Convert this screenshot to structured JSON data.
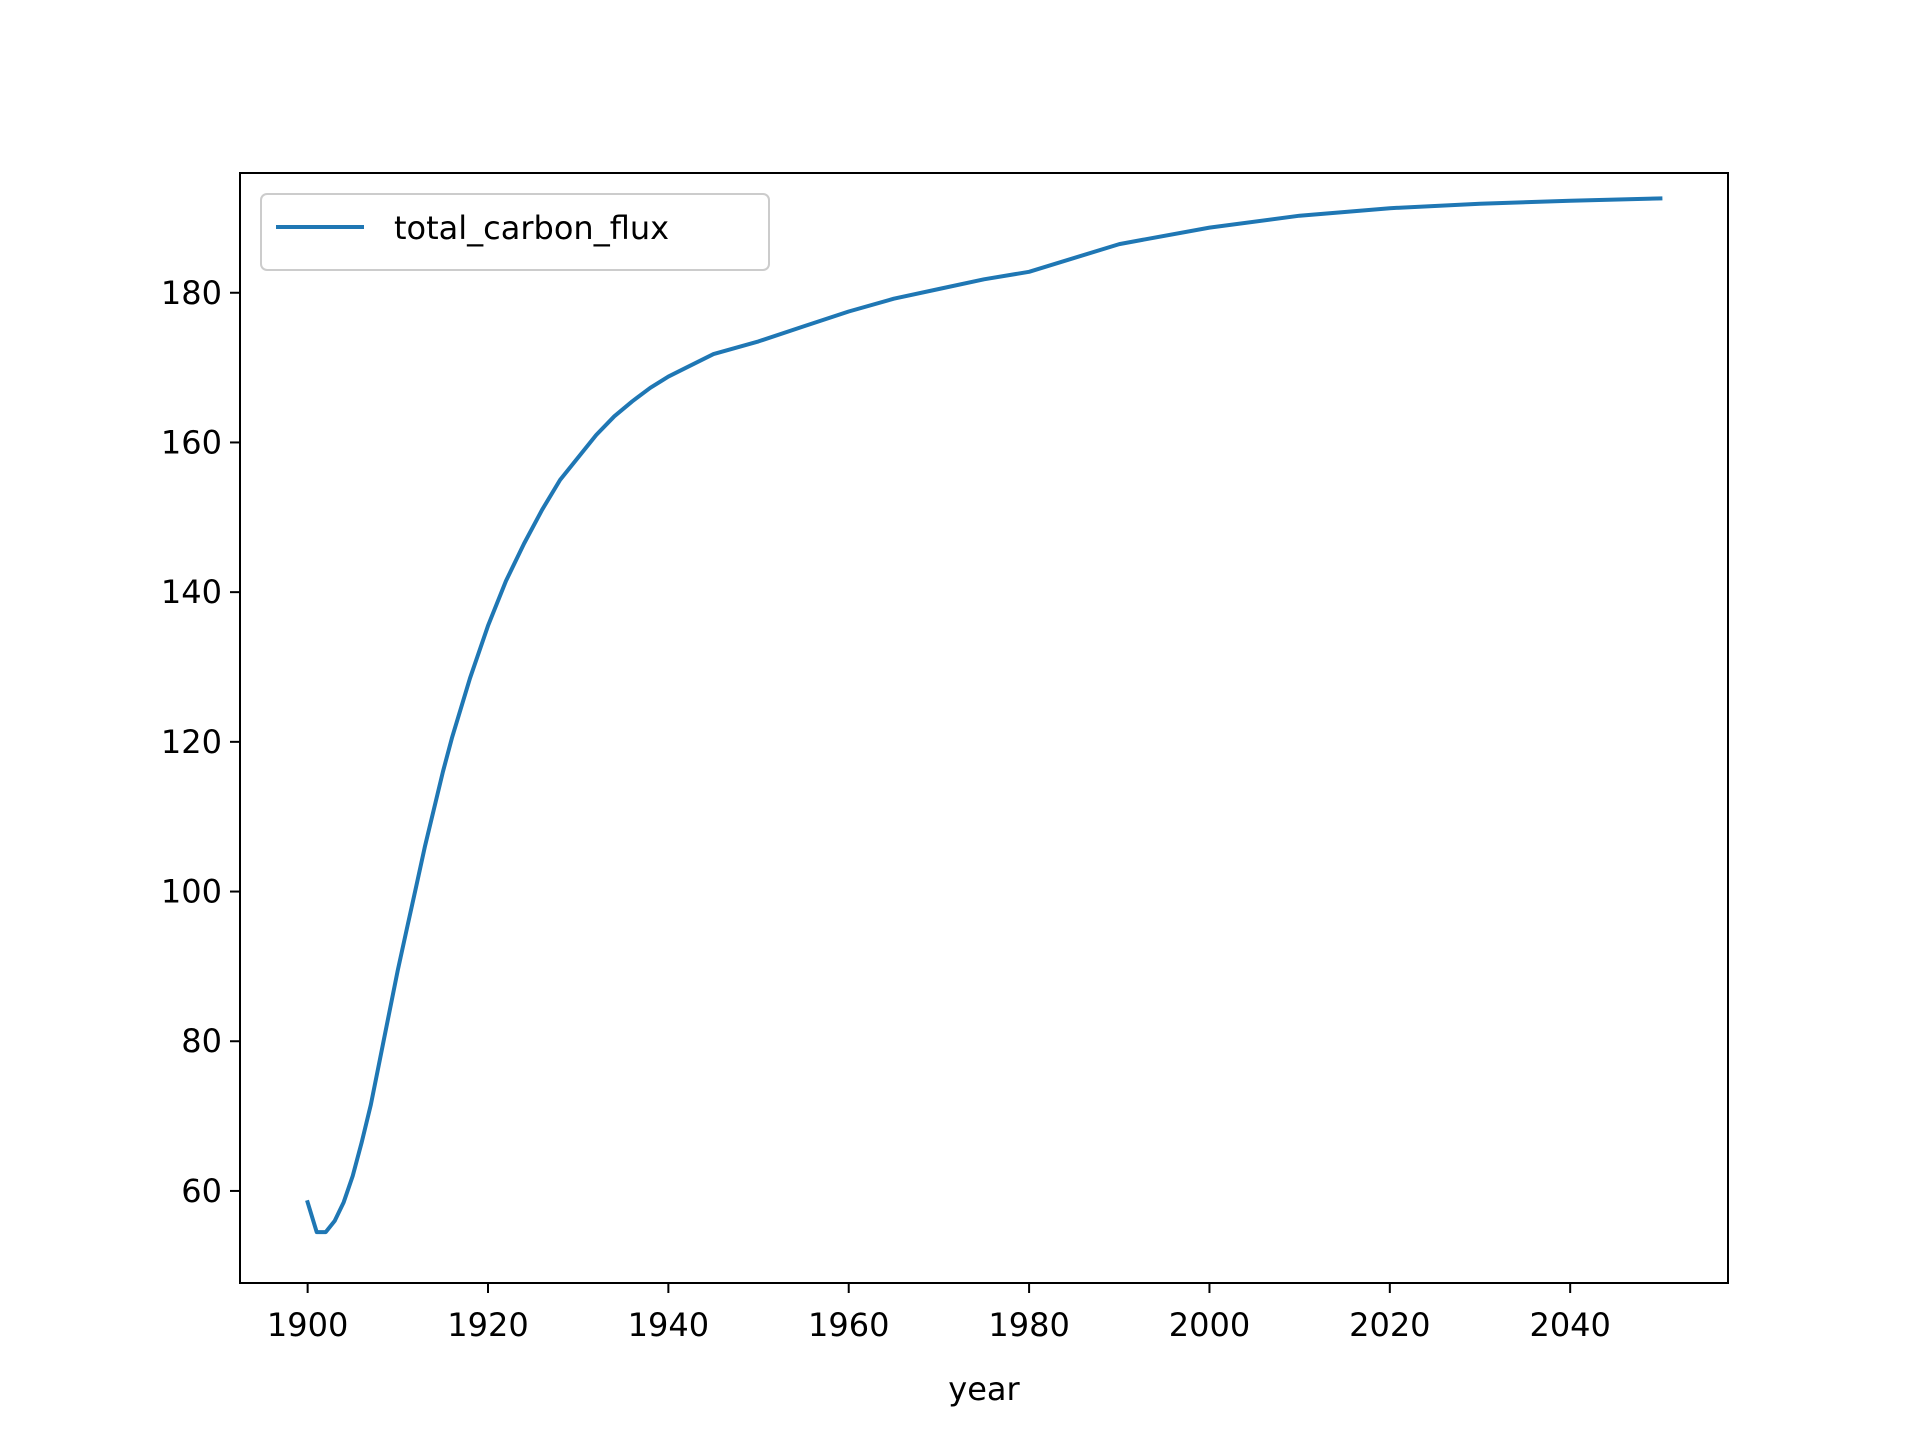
{
  "chart_data": {
    "type": "line",
    "title": "",
    "xlabel": "year",
    "ylabel": "",
    "xlim": [
      1892.5,
      2057.5
    ],
    "ylim": [
      47.7,
      196.0
    ],
    "x_ticks": [
      1900,
      1920,
      1940,
      1960,
      1980,
      2000,
      2020,
      2040
    ],
    "y_ticks": [
      60,
      80,
      100,
      120,
      140,
      160,
      180
    ],
    "grid": false,
    "legend": {
      "placement": "top-left",
      "entries": [
        "total_carbon_flux"
      ]
    },
    "series": [
      {
        "name": "total_carbon_flux",
        "color": "#1f77b4",
        "x": [
          1900,
          1901,
          1902,
          1903,
          1904,
          1905,
          1906,
          1907,
          1908,
          1909,
          1910,
          1911,
          1912,
          1913,
          1914,
          1915,
          1916,
          1918,
          1920,
          1922,
          1924,
          1926,
          1928,
          1930,
          1932,
          1934,
          1936,
          1938,
          1940,
          1942,
          1945,
          1950,
          1955,
          1960,
          1965,
          1970,
          1975,
          1980,
          1990,
          2000,
          2010,
          2020,
          2030,
          2040,
          2050
        ],
        "y": [
          58.5,
          54.5,
          54.5,
          56.0,
          58.5,
          62.0,
          66.5,
          71.5,
          77.5,
          83.5,
          89.5,
          95.0,
          100.5,
          106.0,
          111.0,
          116.0,
          120.5,
          128.5,
          135.5,
          141.5,
          146.5,
          151.0,
          155.0,
          158.0,
          161.0,
          163.5,
          165.5,
          167.3,
          168.8,
          170.0,
          171.8,
          173.5,
          175.5,
          177.5,
          179.2,
          180.5,
          181.8,
          182.8,
          186.5,
          188.7,
          190.3,
          191.3,
          191.9,
          192.3,
          192.6
        ]
      }
    ]
  }
}
